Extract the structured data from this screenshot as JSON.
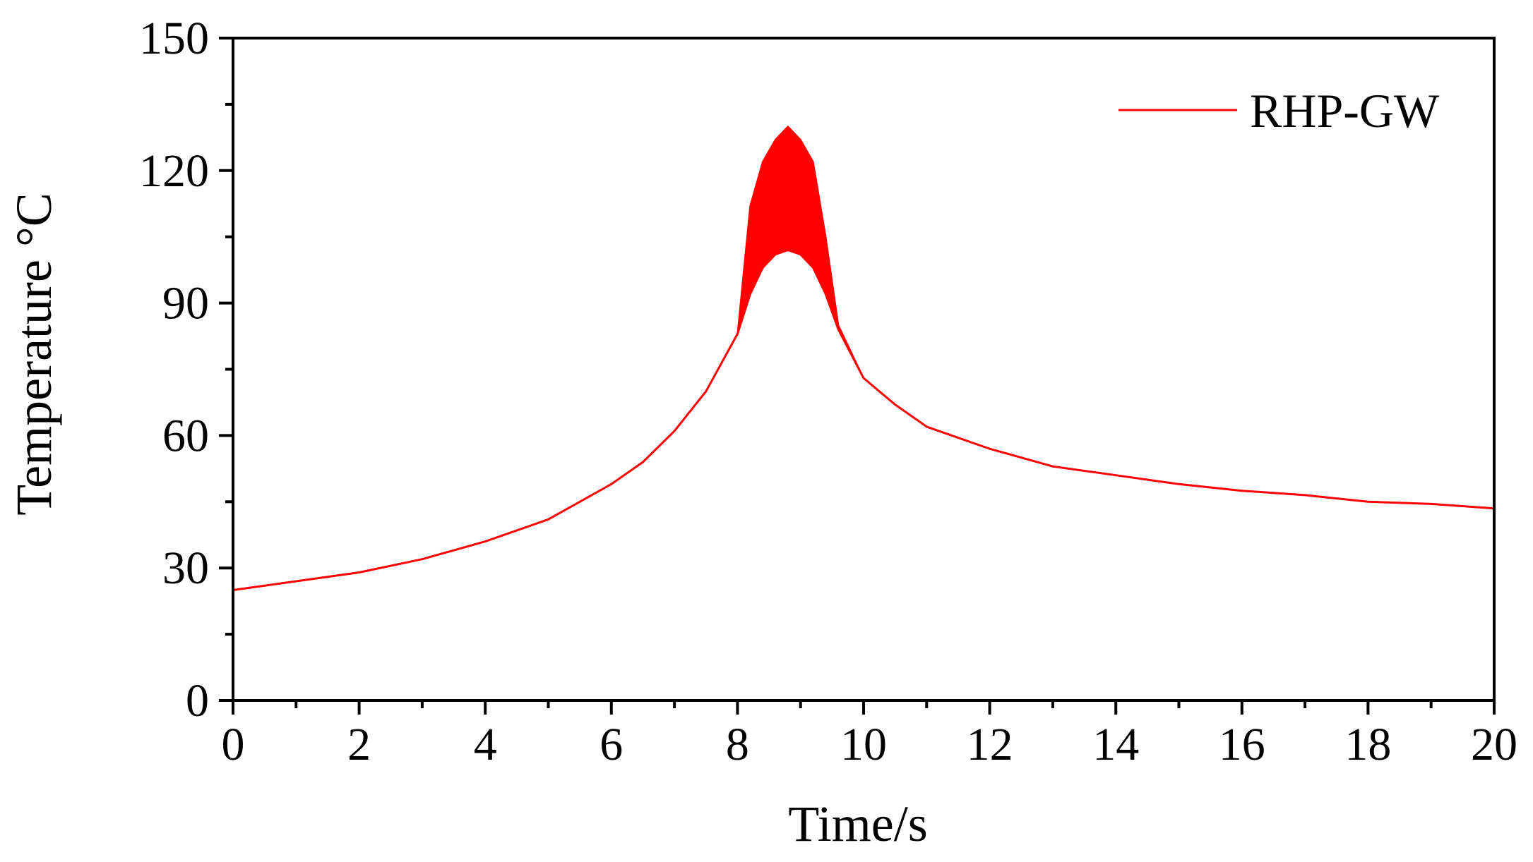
{
  "chart_data": {
    "type": "line",
    "title": "",
    "xlabel": "Time/s",
    "ylabel": "Temperature °C",
    "xlim": [
      0,
      20
    ],
    "ylim": [
      0,
      150
    ],
    "x_ticks": [
      0,
      2,
      4,
      6,
      8,
      10,
      12,
      14,
      16,
      18,
      20
    ],
    "y_ticks": [
      0,
      30,
      60,
      90,
      120,
      150
    ],
    "x_tick_labels": [
      "0",
      "2",
      "4",
      "6",
      "8",
      "10",
      "12",
      "14",
      "16",
      "18",
      "20"
    ],
    "y_tick_labels": [
      "0",
      "30",
      "60",
      "90",
      "120",
      "150"
    ],
    "grid": false,
    "legend_position": "top-right",
    "series": [
      {
        "name": "RHP-GW",
        "color": "#ff0000",
        "x": [
          0,
          1,
          2,
          3,
          4,
          5,
          6,
          6.5,
          7,
          7.5,
          8,
          8.2,
          8.4,
          8.6,
          8.8,
          9.0,
          9.2,
          9.4,
          9.6,
          10,
          10.5,
          11,
          12,
          13,
          14,
          15,
          16,
          17,
          18,
          19,
          20
        ],
        "y": [
          25,
          27,
          29,
          32,
          36,
          41,
          49,
          54,
          61,
          70,
          83,
          92,
          98,
          101,
          102,
          101,
          98,
          92,
          84,
          73,
          67,
          62,
          57,
          53,
          51,
          49,
          47.5,
          46.5,
          45,
          44.5,
          43.5
        ],
        "upper": [
          25,
          27,
          29,
          32,
          36,
          41,
          49,
          54,
          61,
          70,
          83,
          112,
          122,
          127,
          130,
          127,
          122,
          105,
          85,
          73,
          67,
          62,
          57,
          53,
          51,
          49,
          47.5,
          46.5,
          45,
          44.5,
          43.5
        ]
      }
    ]
  }
}
